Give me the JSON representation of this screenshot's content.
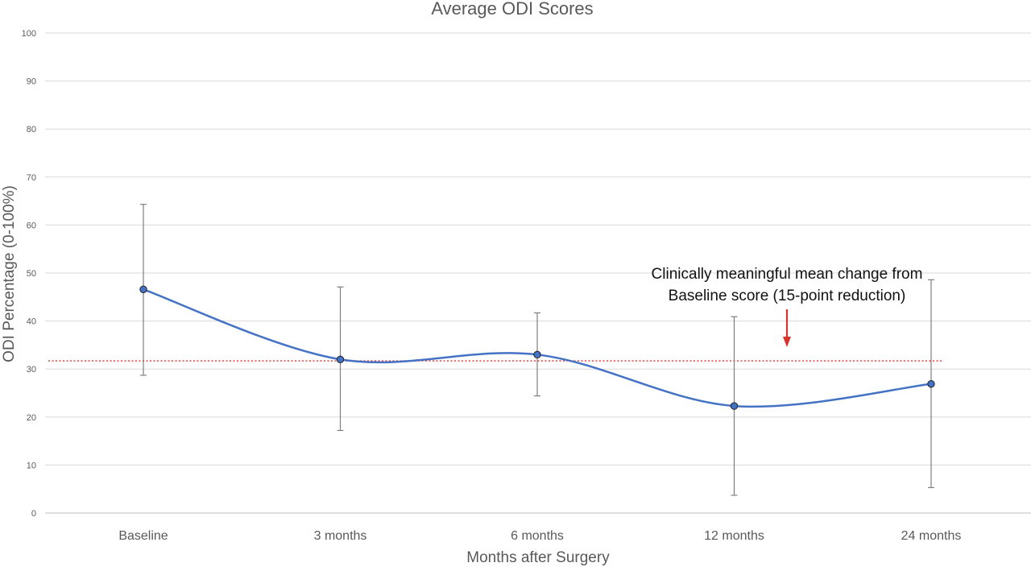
{
  "chart_data": {
    "type": "line",
    "title": "Average ODI Scores",
    "xlabel": "Months after Surgery",
    "ylabel": "ODI Percentage (0-100%)",
    "categories": [
      "Baseline",
      "3 months",
      "6 months",
      "12 months",
      "24 months"
    ],
    "series": [
      {
        "values": [
          46.6,
          32.0,
          33.0,
          22.3,
          26.9
        ],
        "error_upper": [
          64.3,
          47.1,
          41.7,
          40.9,
          48.6
        ],
        "error_lower": [
          28.7,
          17.2,
          24.4,
          3.7,
          5.3
        ],
        "color": "#4472C4",
        "smooth": true
      }
    ],
    "ylim": [
      0,
      100
    ],
    "yticks": [
      0,
      10,
      20,
      30,
      40,
      50,
      60,
      70,
      80,
      90,
      100
    ],
    "grid": true,
    "reference_line": {
      "value": 31.7,
      "color": "#E0302A",
      "style": "dotted"
    },
    "annotation": {
      "line1": "Clinically meaningful mean change from",
      "line2": "Baseline score (15-point reduction)",
      "arrow_color": "#D9342B"
    }
  }
}
